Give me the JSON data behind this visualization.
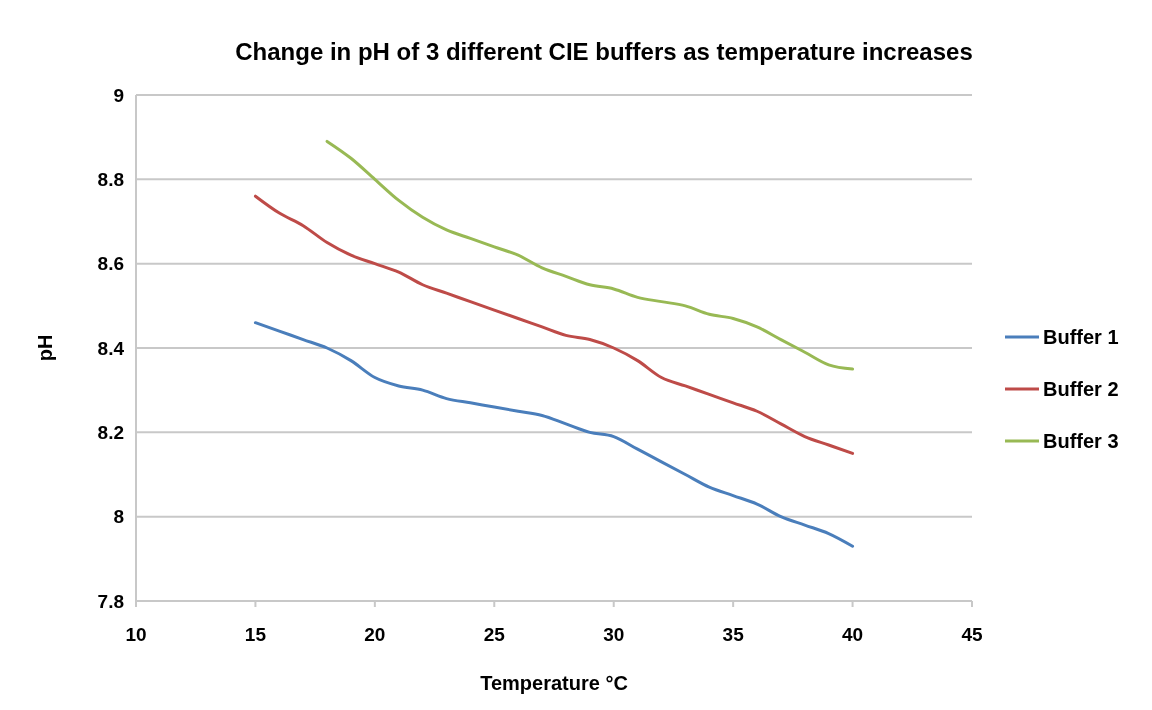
{
  "chart_data": {
    "type": "line",
    "title": "Change in pH of 3 different CIE buffers as temperature increases",
    "xlabel": "Temperature °C",
    "ylabel": "pH",
    "xlim": [
      10,
      45
    ],
    "xticks": [
      10,
      15,
      20,
      25,
      30,
      35,
      40,
      45
    ],
    "ylim": [
      7.8,
      9
    ],
    "yticks": [
      7.8,
      8,
      8.2,
      8.4,
      8.6,
      8.8,
      9
    ],
    "grid": "y",
    "legend": "right",
    "marker": "none",
    "line_style": "solid",
    "series": [
      {
        "name": "Buffer 1",
        "color": "#4a7ebb",
        "x": [
          15,
          16,
          17,
          18,
          19,
          20,
          21,
          22,
          23,
          24,
          25,
          26,
          27,
          28,
          29,
          30,
          31,
          32,
          33,
          34,
          35,
          36,
          37,
          38,
          39,
          40
        ],
        "values": [
          8.46,
          8.44,
          8.42,
          8.4,
          8.37,
          8.33,
          8.31,
          8.3,
          8.28,
          8.27,
          8.26,
          8.25,
          8.24,
          8.22,
          8.2,
          8.19,
          8.16,
          8.13,
          8.1,
          8.07,
          8.05,
          8.03,
          8,
          7.98,
          7.96,
          7.93
        ]
      },
      {
        "name": "Buffer 2",
        "color": "#be4b48",
        "x": [
          15,
          16,
          17,
          18,
          19,
          20,
          21,
          22,
          23,
          24,
          25,
          26,
          27,
          28,
          29,
          30,
          31,
          32,
          33,
          34,
          35,
          36,
          37,
          38,
          39,
          40
        ],
        "values": [
          8.76,
          8.72,
          8.69,
          8.65,
          8.62,
          8.6,
          8.58,
          8.55,
          8.53,
          8.51,
          8.49,
          8.47,
          8.45,
          8.43,
          8.42,
          8.4,
          8.37,
          8.33,
          8.31,
          8.29,
          8.27,
          8.25,
          8.22,
          8.19,
          8.17,
          8.15
        ]
      },
      {
        "name": "Buffer 3",
        "color": "#98b954",
        "x": [
          18,
          19,
          20,
          21,
          22,
          23,
          24,
          25,
          26,
          27,
          28,
          29,
          30,
          31,
          32,
          33,
          34,
          35,
          36,
          37,
          38,
          39,
          40
        ],
        "values": [
          8.89,
          8.85,
          8.8,
          8.75,
          8.71,
          8.68,
          8.66,
          8.64,
          8.62,
          8.59,
          8.57,
          8.55,
          8.54,
          8.52,
          8.51,
          8.5,
          8.48,
          8.47,
          8.45,
          8.42,
          8.39,
          8.36,
          8.35
        ]
      }
    ]
  }
}
